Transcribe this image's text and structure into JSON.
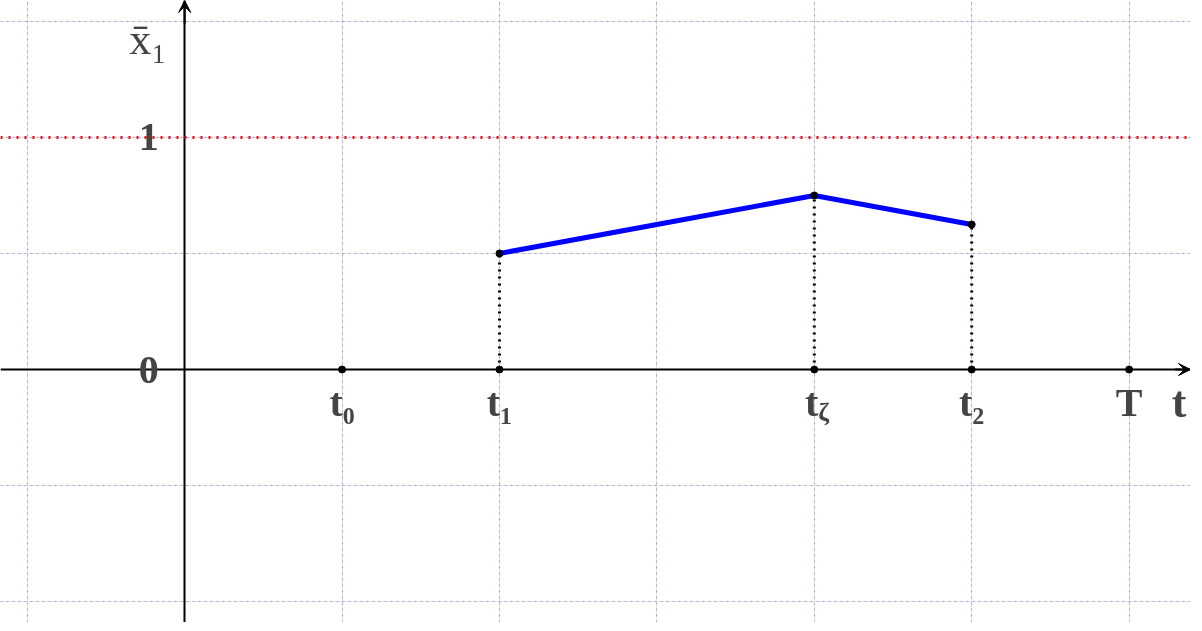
{
  "chart_data": {
    "type": "line",
    "xlabel": "t",
    "ylabel": "x̄₁",
    "categories": [
      null,
      "t₀",
      "t₁",
      null,
      "t$_{ζ}$",
      "t₂",
      "T"
    ],
    "series": [
      {
        "values": [
          null,
          null,
          0.5,
          0.625,
          0.75,
          0.625,
          null
        ],
        "color": "#0000ff",
        "line_style": "solid"
      },
      {
        "type": "lollipop",
        "values": [
          null,
          null,
          0.5,
          null,
          0.75,
          0.625,
          null
        ],
        "color": "#000000",
        "line_style": "dotted",
        "marker": "circle"
      },
      {
        "type": "scatter",
        "values": [
          null,
          0,
          0,
          null,
          0,
          0,
          0
        ],
        "color": "#000000",
        "marker": "circle"
      }
    ],
    "ylim": [
      -1.09,
      1.59
    ],
    "yticks": [
      {
        "value": -1,
        "label": null
      },
      {
        "value": -0.5,
        "label": null
      },
      0,
      {
        "value": 0.5,
        "label": null
      },
      1,
      {
        "value": 1.5,
        "label": null
      }
    ],
    "ref_lines": [
      {
        "axis": "y",
        "value": 1,
        "color": "#ff0000",
        "line_style": "dotted"
      }
    ],
    "grid": true
  }
}
